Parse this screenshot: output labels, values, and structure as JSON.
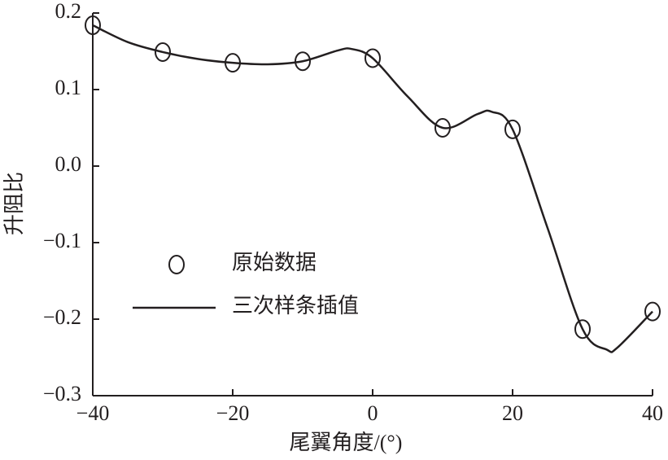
{
  "chart_data": {
    "type": "line",
    "xlabel": "尾翼角度/(°)",
    "ylabel": "升阻比",
    "xlim": [
      -40,
      40
    ],
    "xticks": [
      {
        "value": -40,
        "label": "−40"
      },
      {
        "value": -20,
        "label": "−20"
      },
      0,
      20,
      40
    ],
    "ylim": [
      -0.3,
      0.2
    ],
    "yticks": [
      {
        "value": -0.3,
        "label": "−0.3"
      },
      {
        "value": -0.2,
        "label": "−0.2"
      },
      {
        "value": -0.1,
        "label": "−0.1"
      },
      {
        "value": 0,
        "label": "0.0"
      },
      0.1,
      0.2
    ],
    "legend": "left",
    "series": [
      {
        "name": "原始数据",
        "marker": "circle",
        "color": "#231f20",
        "x": [
          -40,
          -30,
          -20,
          -10,
          0,
          10,
          20,
          30,
          40
        ],
        "values": [
          0.184,
          0.149,
          0.135,
          0.137,
          0.141,
          0.05,
          0.048,
          -0.213,
          -0.19
        ]
      },
      {
        "name": "三次样条插值",
        "marker": "line",
        "color": "#231f20",
        "x": [
          -40,
          -35,
          -30,
          -25,
          -20,
          -15,
          -10,
          -5,
          -3,
          0,
          5,
          10,
          15,
          17,
          20,
          25,
          30,
          33.5,
          35,
          40
        ],
        "values": [
          0.184,
          0.162,
          0.149,
          0.14,
          0.135,
          0.133,
          0.137,
          0.151,
          0.153,
          0.141,
          0.091,
          0.05,
          0.068,
          0.071,
          0.048,
          -0.081,
          -0.213,
          -0.24,
          -0.237,
          -0.19
        ]
      }
    ]
  }
}
